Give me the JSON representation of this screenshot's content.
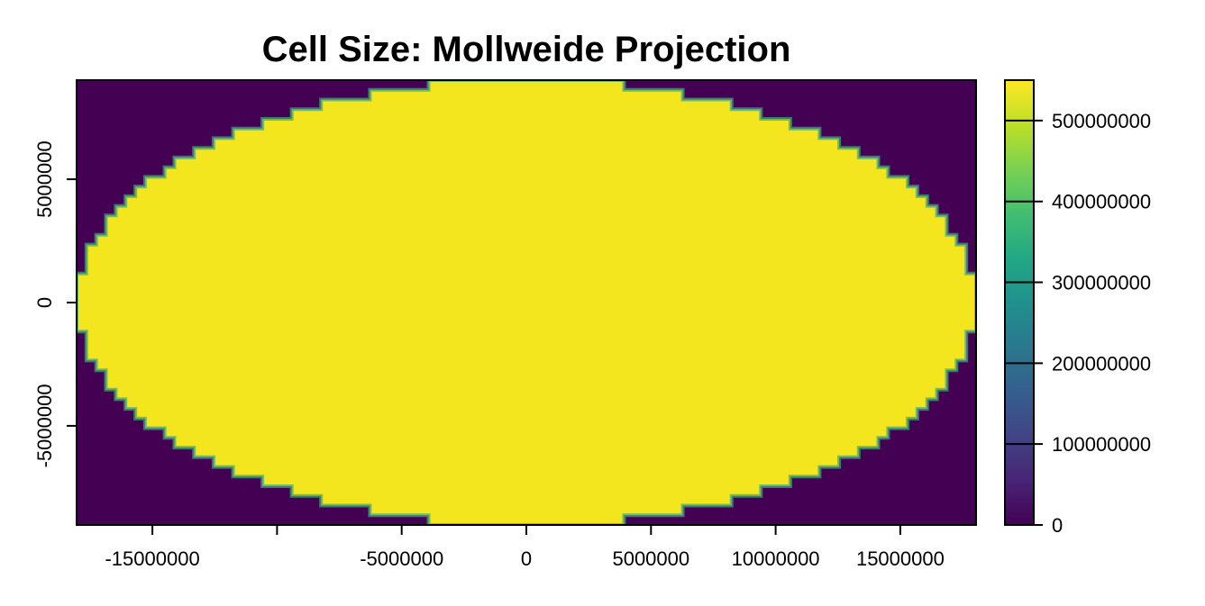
{
  "chart_data": {
    "type": "heatmap",
    "title": "Cell Size: Mollweide Projection",
    "xlabel": "",
    "ylabel": "",
    "xlim": [
      -18040096,
      18040096
    ],
    "ylim": [
      -9020048,
      9020048
    ],
    "x_ticks": [
      -15000000,
      -10000000,
      -5000000,
      0,
      5000000,
      10000000,
      15000000
    ],
    "x_tick_labels": [
      "-15000000",
      "",
      "-5000000",
      "0",
      "5000000",
      "10000000",
      "15000000"
    ],
    "y_ticks": [
      -5000000,
      0,
      5000000
    ],
    "y_tick_labels": [
      "-5000000",
      "0",
      "5000000"
    ],
    "raster": {
      "inside_value": 530000000,
      "outside_value": 0,
      "shape": "ellipse",
      "semi_axis_x": 18040096,
      "semi_axis_y": 9020048
    },
    "legend": {
      "placement": "right",
      "range": [
        0,
        550000000
      ],
      "ticks": [
        0,
        100000000,
        200000000,
        300000000,
        400000000,
        500000000
      ],
      "tick_labels": [
        "0",
        "100000000",
        "200000000",
        "300000000",
        "400000000",
        "500000000"
      ],
      "colormap": "viridis"
    },
    "colors": {
      "low": "#440154",
      "high": "#f5e31e",
      "inside_fill": "#f3e51e",
      "outside_fill": "#440154"
    },
    "grid": false
  }
}
